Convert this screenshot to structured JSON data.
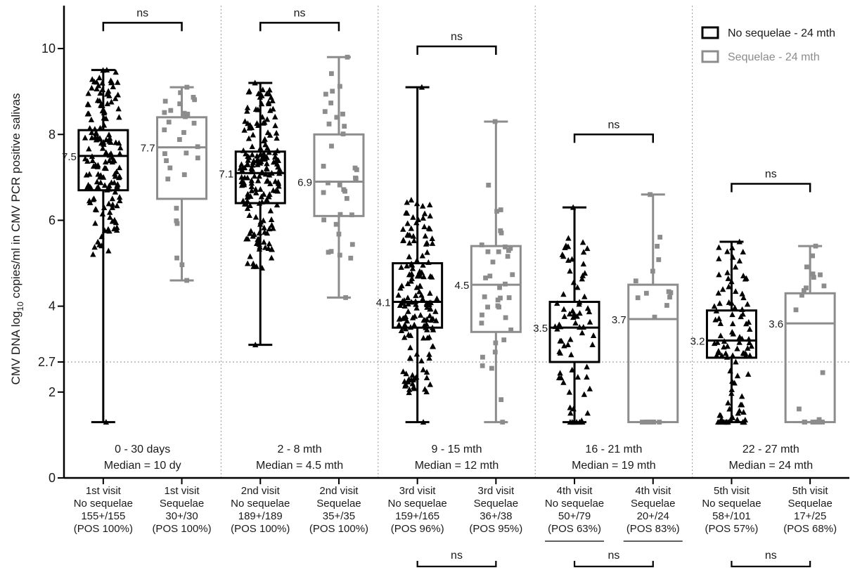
{
  "chart_data": {
    "type": "box",
    "ylabel": "CMV DNA log10 copies/ml in CMV PCR positive salivas",
    "ylabel_prefix": "CMV DNA log",
    "ylabel_sub": "10",
    "ylabel_suffix": " copies/ml in CMV PCR positive salivas",
    "ylim": [
      0,
      11
    ],
    "yticks": [
      {
        "value": 0,
        "label": "0"
      },
      {
        "value": 2,
        "label": "2"
      },
      {
        "value": 2.7,
        "label": "2.7"
      },
      {
        "value": 4,
        "label": "4"
      },
      {
        "value": 6,
        "label": "6"
      },
      {
        "value": 8,
        "label": "8"
      },
      {
        "value": 10,
        "label": "10"
      }
    ],
    "reference_line": 2.7,
    "legend": {
      "position": "top-right",
      "entries": [
        {
          "label": "No sequelae - 24 mth",
          "color": "#000000"
        },
        {
          "label": "Sequelae - 24 mth",
          "color": "#8c8c8c"
        }
      ]
    },
    "colors": {
      "no_sequelae": "#000000",
      "sequelae": "#8c8c8c",
      "reference": "#9a9a9a"
    },
    "periods": [
      {
        "label": "0 - 30 days",
        "median_label": "Median = 10 dy"
      },
      {
        "label": "2 - 8 mth",
        "median_label": "Median = 4.5 mth"
      },
      {
        "label": "9 - 15 mth",
        "median_label": "Median = 12 mth"
      },
      {
        "label": "16 - 21 mth",
        "median_label": "Median = 19 mth"
      },
      {
        "label": "22 - 27 mth",
        "median_label": "Median = 24 mth"
      }
    ],
    "groups": [
      {
        "visit": "1st visit",
        "status": "No sequelae",
        "count": "155+/155",
        "pos": "(POS 100%)",
        "series": "no_sequelae",
        "marker": "triangle",
        "n": 155,
        "min": 1.3,
        "q1": 6.7,
        "median": 7.5,
        "q3": 8.1,
        "max": 9.5,
        "median_label": "7.5"
      },
      {
        "visit": "1st visit",
        "status": "Sequelae",
        "count": "30+/30",
        "pos": "(POS 100%)",
        "series": "sequelae",
        "marker": "square",
        "n": 30,
        "min": 4.6,
        "q1": 6.5,
        "median": 7.7,
        "q3": 8.4,
        "max": 9.1,
        "median_label": "7.7"
      },
      {
        "visit": "2nd visit",
        "status": "No sequelae",
        "count": "189+/189",
        "pos": "(POS 100%)",
        "series": "no_sequelae",
        "marker": "triangle",
        "n": 189,
        "min": 3.1,
        "q1": 6.4,
        "median": 7.1,
        "q3": 7.6,
        "max": 9.2,
        "median_label": "7.1"
      },
      {
        "visit": "2nd visit",
        "status": "Sequelae",
        "count": "35+/35",
        "pos": "(POS 100%)",
        "series": "sequelae",
        "marker": "square",
        "n": 35,
        "min": 4.2,
        "q1": 6.1,
        "median": 6.9,
        "q3": 8.0,
        "max": 9.8,
        "median_label": "6.9"
      },
      {
        "visit": "3rd visit",
        "status": "No sequelae",
        "count": "159+/165",
        "pos": "(POS 96%)",
        "series": "no_sequelae",
        "marker": "triangle",
        "n": 165,
        "min": 1.3,
        "q1": 3.5,
        "median": 4.1,
        "q3": 5.0,
        "max": 9.1,
        "median_label": "4.1"
      },
      {
        "visit": "3rd visit",
        "status": "Sequelae",
        "count": "36+/38",
        "pos": "(POS 95%)",
        "series": "sequelae",
        "marker": "square",
        "n": 38,
        "min": 1.3,
        "q1": 3.4,
        "median": 4.5,
        "q3": 5.4,
        "max": 8.3,
        "median_label": "4.5"
      },
      {
        "visit": "4th visit",
        "status": "No sequelae",
        "count": "50+/79",
        "pos": "(POS 63%)",
        "series": "no_sequelae",
        "marker": "triangle",
        "n": 79,
        "min": 1.3,
        "q1": 2.7,
        "median": 3.5,
        "q3": 4.1,
        "max": 6.3,
        "median_label": "3.5"
      },
      {
        "visit": "4th visit",
        "status": "Sequelae",
        "count": "20+/24",
        "pos": "(POS 83%)",
        "series": "sequelae",
        "marker": "square",
        "n": 24,
        "min": 1.3,
        "q1": 1.3,
        "median": 3.7,
        "q3": 4.5,
        "max": 6.6,
        "median_label": "3.7"
      },
      {
        "visit": "5th visit",
        "status": "No sequelae",
        "count": "58+/101",
        "pos": "(POS 57%)",
        "series": "no_sequelae",
        "marker": "triangle",
        "n": 101,
        "min": 1.3,
        "q1": 2.8,
        "median": 3.2,
        "q3": 3.9,
        "max": 5.5,
        "median_label": "3.2"
      },
      {
        "visit": "5th visit",
        "status": "Sequelae",
        "count": "17+/25",
        "pos": "(POS 68%)",
        "series": "sequelae",
        "marker": "square",
        "n": 25,
        "min": 1.3,
        "q1": 1.3,
        "median": 3.6,
        "q3": 4.3,
        "max": 5.4,
        "median_label": "3.6"
      }
    ],
    "comparisons": [
      {
        "label": "ns",
        "from": 0,
        "to": 1,
        "y": 10.6
      },
      {
        "label": "ns",
        "from": 2,
        "to": 3,
        "y": 10.6
      },
      {
        "label": "ns",
        "from": 4,
        "to": 5,
        "y": 10.05
      },
      {
        "label": "ns",
        "from": 6,
        "to": 7,
        "y": 8.0
      },
      {
        "label": "ns",
        "from": 8,
        "to": 9,
        "y": 6.85
      },
      {
        "label": "ns",
        "from": 4,
        "to": 5,
        "position": "below"
      },
      {
        "label": "ns",
        "from": 6,
        "to": 7,
        "position": "below"
      },
      {
        "label": "ns",
        "from": 8,
        "to": 9,
        "position": "below"
      }
    ],
    "underlined_groups": [
      6,
      7
    ]
  }
}
